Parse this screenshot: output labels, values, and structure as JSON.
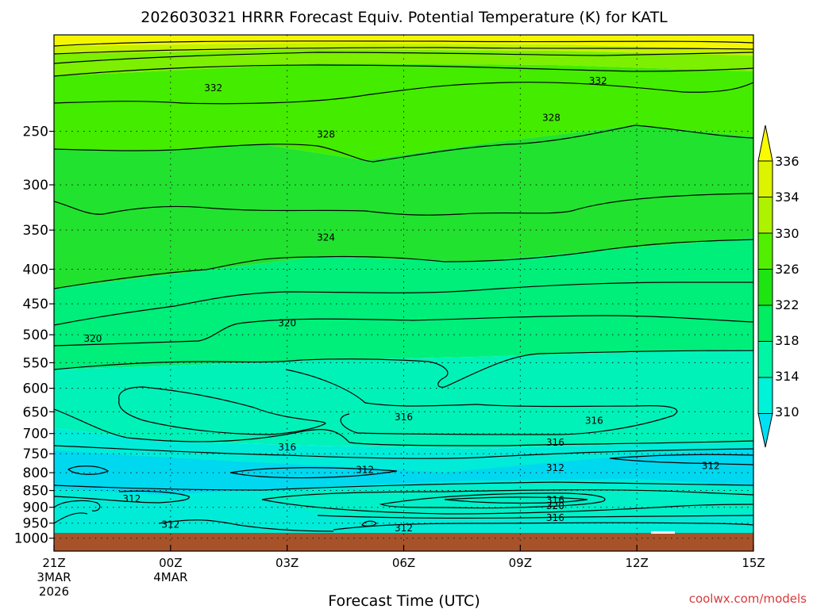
{
  "title": "2026030321 HRRR Forecast Equiv. Potential Temperature (K) for KATL",
  "xlabel": "Forecast Time (UTC)",
  "credit": "coolwx.com/models",
  "chart_data": {
    "type": "contour",
    "title": "2026030321 HRRR Forecast Equiv. Potential Temperature (K) for KATL",
    "xlabel": "Forecast Time (UTC)",
    "ylabel": "",
    "y_axis": "pressure (inverted, log-like)",
    "y_ticks": [
      250,
      300,
      350,
      400,
      450,
      500,
      550,
      600,
      650,
      700,
      750,
      800,
      850,
      900,
      950,
      1000
    ],
    "x_ticks": [
      {
        "hour": 0,
        "label": "21Z",
        "sub1": "3MAR",
        "sub2": "2026"
      },
      {
        "hour": 3,
        "label": "00Z",
        "sub1": "4MAR",
        "sub2": ""
      },
      {
        "hour": 6,
        "label": "03Z",
        "sub1": "",
        "sub2": ""
      },
      {
        "hour": 9,
        "label": "06Z",
        "sub1": "",
        "sub2": ""
      },
      {
        "hour": 12,
        "label": "09Z",
        "sub1": "",
        "sub2": ""
      },
      {
        "hour": 15,
        "label": "12Z",
        "sub1": "",
        "sub2": ""
      },
      {
        "hour": 18,
        "label": "15Z",
        "sub1": "",
        "sub2": ""
      }
    ],
    "colorbar": {
      "levels": [
        310,
        314,
        318,
        322,
        326,
        330,
        334,
        336
      ],
      "labels": [
        "310",
        "314",
        "318",
        "322",
        "326",
        "330",
        "334",
        "336"
      ],
      "colors": [
        "#00e0f4",
        "#00f2d8",
        "#00f6a4",
        "#00ee60",
        "#1ee412",
        "#52f000",
        "#aef200",
        "#dcf400",
        "#fbfb00"
      ]
    },
    "contour_labels": [
      {
        "value": "332",
        "hour": 4.1,
        "p": 215
      },
      {
        "value": "332",
        "hour": 14.0,
        "p": 210
      },
      {
        "value": "328",
        "hour": 7.0,
        "p": 252
      },
      {
        "value": "328",
        "hour": 12.8,
        "p": 238
      },
      {
        "value": "324",
        "hour": 7.0,
        "p": 358
      },
      {
        "value": "320",
        "hour": 1.0,
        "p": 505
      },
      {
        "value": "320",
        "hour": 6.0,
        "p": 479
      },
      {
        "value": "316",
        "hour": 9.0,
        "p": 660
      },
      {
        "value": "316",
        "hour": 6.0,
        "p": 732
      },
      {
        "value": "316",
        "hour": 13.9,
        "p": 668
      },
      {
        "value": "316",
        "hour": 12.9,
        "p": 720
      },
      {
        "value": "312",
        "hour": 8.0,
        "p": 790
      },
      {
        "value": "312",
        "hour": 12.9,
        "p": 785
      },
      {
        "value": "312",
        "hour": 16.9,
        "p": 780
      },
      {
        "value": "316",
        "hour": 12.9,
        "p": 875
      },
      {
        "value": "320",
        "hour": 12.9,
        "p": 893
      },
      {
        "value": "312",
        "hour": 2.0,
        "p": 872
      },
      {
        "value": "316",
        "hour": 12.9,
        "p": 930
      },
      {
        "value": "312",
        "hour": 3.0,
        "p": 952
      },
      {
        "value": "312",
        "hour": 9.0,
        "p": 963
      }
    ]
  }
}
